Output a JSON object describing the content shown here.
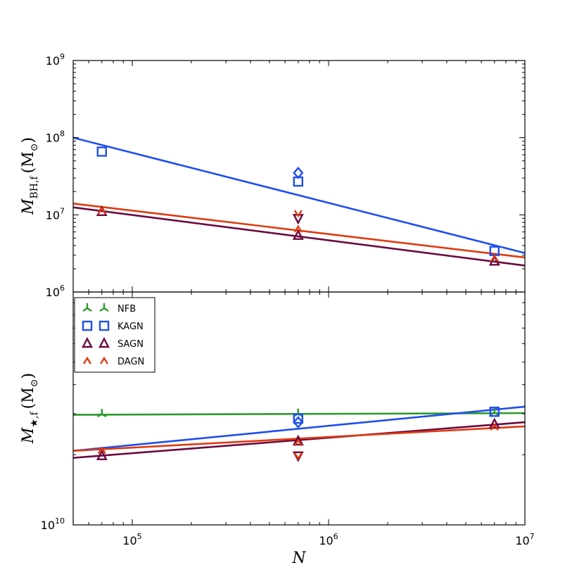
{
  "chart_data": [
    {
      "type": "scatter",
      "panel": "top",
      "xscale": "log",
      "yscale": "log",
      "xlim": [
        50000,
        10000000
      ],
      "ylim": [
        1000000,
        1000000000
      ],
      "ylabel": {
        "symbol": "M",
        "subscript": "BH,f",
        "unit": "(M",
        "unit_sub": "⊙",
        "unit_close": ")"
      },
      "yticks": [
        {
          "value": 1000000,
          "base": "10",
          "exp": "6"
        },
        {
          "value": 10000000,
          "base": "10",
          "exp": "7"
        },
        {
          "value": 100000000,
          "base": "10",
          "exp": "8"
        },
        {
          "value": 1000000000,
          "base": "10",
          "exp": "9"
        }
      ],
      "series": [
        {
          "name": "KAGN",
          "color": "#1f4ef0",
          "points": [
            {
              "x": 70000,
              "y": 66000000,
              "marker": "square"
            },
            {
              "x": 700000,
              "y": 27000000,
              "marker": "square"
            },
            {
              "x": 700000,
              "y": 35000000,
              "marker": "diamond"
            },
            {
              "x": 7000000,
              "y": 3400000,
              "marker": "square"
            }
          ],
          "fit": [
            [
              50000,
              100000000
            ],
            [
              10000000,
              3200000
            ]
          ]
        },
        {
          "name": "SAGN",
          "color": "#6b0a3e",
          "points": [
            {
              "x": 70000,
              "y": 11000000,
              "marker": "triangle-up"
            },
            {
              "x": 700000,
              "y": 5400000,
              "marker": "triangle-up"
            },
            {
              "x": 700000,
              "y": 9000000,
              "marker": "triangle-down"
            },
            {
              "x": 7000000,
              "y": 2500000,
              "marker": "triangle-up"
            }
          ],
          "fit": [
            [
              50000,
              12500000
            ],
            [
              10000000,
              2200000
            ]
          ]
        },
        {
          "name": "DAGN",
          "color": "#e03a10",
          "points": [
            {
              "x": 70000,
              "y": 11200000,
              "marker": "caret-up"
            },
            {
              "x": 700000,
              "y": 6500000,
              "marker": "caret-up"
            },
            {
              "x": 700000,
              "y": 10500000,
              "marker": "caret-down"
            },
            {
              "x": 7000000,
              "y": 2700000,
              "marker": "caret-up"
            }
          ],
          "fit": [
            [
              50000,
              14000000
            ],
            [
              10000000,
              2800000
            ]
          ]
        }
      ]
    },
    {
      "type": "scatter",
      "panel": "bottom",
      "xscale": "log",
      "yscale": "log",
      "xlim": [
        50000,
        10000000
      ],
      "ylim": [
        10000000000,
        100000000000
      ],
      "xlabel": "N",
      "ylabel": {
        "symbol": "M",
        "subscript": "★,f",
        "unit": "(M",
        "unit_sub": "⊙",
        "unit_close": ")"
      },
      "yticks": [
        {
          "value": 10000000000,
          "base": "10",
          "exp": "10"
        }
      ],
      "xticks": [
        {
          "value": 100000,
          "base": "10",
          "exp": "5"
        },
        {
          "value": 1000000,
          "base": "10",
          "exp": "6"
        },
        {
          "value": 10000000,
          "base": "10",
          "exp": "7"
        }
      ],
      "legend": {
        "position": "top-left",
        "entries": [
          {
            "label": "NFB",
            "color": "#2a9a2a",
            "marker": "tri-down"
          },
          {
            "label": "KAGN",
            "color": "#1f4ef0",
            "marker": "square"
          },
          {
            "label": "SAGN",
            "color": "#6b0a3e",
            "marker": "triangle-up"
          },
          {
            "label": "DAGN",
            "color": "#e03a10",
            "marker": "caret-up"
          }
        ]
      },
      "series": [
        {
          "name": "NFB",
          "color": "#2a9a2a",
          "points": [
            {
              "x": 70000,
              "y": 30000000000,
              "marker": "tri-down"
            },
            {
              "x": 700000,
              "y": 30100000000,
              "marker": "tri-down"
            },
            {
              "x": 7000000,
              "y": 30400000000,
              "marker": "tri-down"
            }
          ],
          "fit": [
            [
              50000,
              29700000000
            ],
            [
              10000000,
              30200000000
            ]
          ]
        },
        {
          "name": "KAGN",
          "color": "#1f4ef0",
          "points": [
            {
              "x": 700000,
              "y": 28600000000,
              "marker": "square"
            },
            {
              "x": 700000,
              "y": 27600000000,
              "marker": "diamond"
            },
            {
              "x": 7000000,
              "y": 30600000000,
              "marker": "square"
            }
          ],
          "fit": [
            [
              50000,
              20800000000
            ],
            [
              10000000,
              32200000000
            ]
          ]
        },
        {
          "name": "SAGN",
          "color": "#6b0a3e",
          "points": [
            {
              "x": 70000,
              "y": 19800000000,
              "marker": "triangle-up"
            },
            {
              "x": 700000,
              "y": 22900000000,
              "marker": "triangle-up"
            },
            {
              "x": 700000,
              "y": 19800000000,
              "marker": "triangle-down"
            },
            {
              "x": 7000000,
              "y": 27100000000,
              "marker": "triangle-up"
            }
          ],
          "fit": [
            [
              50000,
              19400000000
            ],
            [
              10000000,
              27600000000
            ]
          ]
        },
        {
          "name": "DAGN",
          "color": "#e03a10",
          "points": [
            {
              "x": 70000,
              "y": 20800000000,
              "marker": "caret-up"
            },
            {
              "x": 700000,
              "y": 22500000000,
              "marker": "caret-up"
            },
            {
              "x": 700000,
              "y": 19800000000,
              "marker": "caret-down"
            },
            {
              "x": 7000000,
              "y": 26200000000,
              "marker": "caret-up"
            }
          ],
          "fit": [
            [
              50000,
              20800000000
            ],
            [
              10000000,
              26500000000
            ]
          ]
        }
      ]
    }
  ]
}
